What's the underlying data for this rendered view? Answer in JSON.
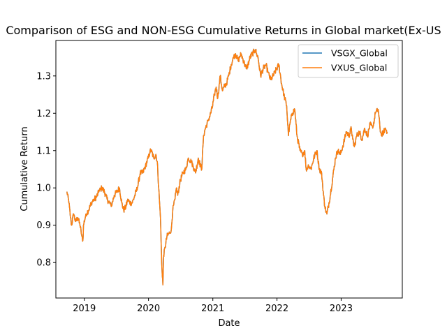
{
  "chart_data": {
    "type": "line",
    "title": "Comparison of ESG and NON-ESG Cumulative Returns in Global market(Ex-US",
    "xlabel": "Date",
    "ylabel": "Cumulative Return",
    "xlim": [
      "2018-07-23",
      "2023-12-15"
    ],
    "ylim": [
      0.705,
      1.395
    ],
    "x_ticks": [
      "2019",
      "2020",
      "2021",
      "2022",
      "2023"
    ],
    "y_ticks": [
      "0.8",
      "0.9",
      "1.0",
      "1.1",
      "1.2",
      "1.3"
    ],
    "grid": false,
    "legend_position": "top-right",
    "x": [
      "2018-09-24",
      "2018-10-05",
      "2018-10-12",
      "2018-10-20",
      "2018-11-01",
      "2018-11-12",
      "2018-11-25",
      "2018-12-07",
      "2018-12-18",
      "2018-12-24",
      "2018-12-27",
      "2019-01-10",
      "2019-01-25",
      "2019-02-10",
      "2019-02-25",
      "2019-03-10",
      "2019-03-25",
      "2019-04-10",
      "2019-04-25",
      "2019-05-10",
      "2019-05-25",
      "2019-06-03",
      "2019-06-20",
      "2019-07-05",
      "2019-07-20",
      "2019-08-02",
      "2019-08-13",
      "2019-08-26",
      "2019-09-05",
      "2019-09-16",
      "2019-10-01",
      "2019-10-15",
      "2019-10-30",
      "2019-11-15",
      "2019-11-30",
      "2019-12-15",
      "2019-12-31",
      "2020-01-10",
      "2020-01-17",
      "2020-01-31",
      "2020-02-12",
      "2020-02-20",
      "2020-02-28",
      "2020-03-09",
      "2020-03-16",
      "2020-03-23",
      "2020-03-27",
      "2020-04-05",
      "2020-04-15",
      "2020-04-30",
      "2020-05-10",
      "2020-05-18",
      "2020-05-31",
      "2020-06-08",
      "2020-06-15",
      "2020-06-30",
      "2020-07-15",
      "2020-07-31",
      "2020-08-15",
      "2020-08-31",
      "2020-09-10",
      "2020-09-25",
      "2020-10-10",
      "2020-10-22",
      "2020-10-30",
      "2020-11-09",
      "2020-11-20",
      "2020-12-05",
      "2020-12-20",
      "2020-12-31",
      "2021-01-10",
      "2021-01-20",
      "2021-01-29",
      "2021-02-12",
      "2021-02-25",
      "2021-03-05",
      "2021-03-20",
      "2021-04-01",
      "2021-04-15",
      "2021-04-30",
      "2021-05-10",
      "2021-05-25",
      "2021-06-10",
      "2021-06-25",
      "2021-07-10",
      "2021-07-20",
      "2021-08-01",
      "2021-08-15",
      "2021-08-31",
      "2021-09-07",
      "2021-09-15",
      "2021-09-30",
      "2021-10-15",
      "2021-10-31",
      "2021-11-10",
      "2021-11-26",
      "2021-12-10",
      "2021-12-31",
      "2022-01-12",
      "2022-01-27",
      "2022-02-09",
      "2022-02-25",
      "2022-03-07",
      "2022-03-15",
      "2022-03-29",
      "2022-04-12",
      "2022-04-25",
      "2022-05-12",
      "2022-05-25",
      "2022-06-08",
      "2022-06-16",
      "2022-06-30",
      "2022-07-14",
      "2022-07-29",
      "2022-08-16",
      "2022-08-30",
      "2022-09-12",
      "2022-09-23",
      "2022-09-30",
      "2022-10-12",
      "2022-10-20",
      "2022-10-31",
      "2022-11-15",
      "2022-11-30",
      "2022-12-13",
      "2022-12-28",
      "2023-01-15",
      "2023-01-31",
      "2023-02-15",
      "2023-02-28",
      "2023-03-08",
      "2023-03-17",
      "2023-03-31",
      "2023-04-15",
      "2023-04-30",
      "2023-05-15",
      "2023-05-31",
      "2023-06-15",
      "2023-06-30",
      "2023-07-15",
      "2023-07-31",
      "2023-08-10",
      "2023-08-18",
      "2023-08-31",
      "2023-09-10",
      "2023-09-20"
    ],
    "series": [
      {
        "name": "VSGX_Global",
        "color": "#1f77b4",
        "values": [
          0.99,
          0.96,
          0.93,
          0.9,
          0.93,
          0.91,
          0.92,
          0.9,
          0.87,
          0.86,
          0.9,
          0.93,
          0.94,
          0.96,
          0.97,
          0.975,
          0.99,
          1.0,
          0.99,
          0.97,
          0.96,
          0.95,
          0.98,
          0.99,
          1.0,
          0.96,
          0.94,
          0.95,
          0.97,
          0.96,
          0.96,
          0.98,
          1.0,
          1.04,
          1.04,
          1.06,
          1.08,
          1.1,
          1.1,
          1.08,
          1.09,
          1.07,
          1.0,
          0.92,
          0.8,
          0.74,
          0.82,
          0.84,
          0.87,
          0.88,
          0.89,
          0.94,
          0.97,
          1.0,
          0.98,
          1.02,
          1.04,
          1.05,
          1.08,
          1.07,
          1.06,
          1.04,
          1.08,
          1.06,
          1.05,
          1.14,
          1.16,
          1.18,
          1.2,
          1.22,
          1.25,
          1.27,
          1.24,
          1.3,
          1.26,
          1.27,
          1.28,
          1.3,
          1.33,
          1.35,
          1.36,
          1.34,
          1.36,
          1.34,
          1.32,
          1.33,
          1.35,
          1.36,
          1.37,
          1.36,
          1.35,
          1.3,
          1.32,
          1.33,
          1.31,
          1.29,
          1.3,
          1.32,
          1.33,
          1.28,
          1.25,
          1.22,
          1.14,
          1.17,
          1.2,
          1.21,
          1.14,
          1.1,
          1.09,
          1.1,
          1.05,
          1.06,
          1.05,
          1.08,
          1.1,
          1.05,
          1.04,
          0.98,
          0.95,
          0.93,
          0.95,
          0.98,
          1.03,
          1.08,
          1.1,
          1.09,
          1.12,
          1.15,
          1.14,
          1.16,
          1.13,
          1.11,
          1.14,
          1.15,
          1.13,
          1.16,
          1.14,
          1.17,
          1.16,
          1.2,
          1.21,
          1.16,
          1.14,
          1.15,
          1.16,
          1.15
        ]
      },
      {
        "name": "VXUS_Global",
        "color": "#ff7f0e",
        "values": [
          0.99,
          0.96,
          0.93,
          0.9,
          0.93,
          0.91,
          0.92,
          0.9,
          0.87,
          0.86,
          0.9,
          0.93,
          0.94,
          0.96,
          0.97,
          0.975,
          0.99,
          1.0,
          0.99,
          0.97,
          0.96,
          0.95,
          0.98,
          0.99,
          1.0,
          0.96,
          0.94,
          0.95,
          0.97,
          0.96,
          0.96,
          0.98,
          1.0,
          1.04,
          1.04,
          1.06,
          1.08,
          1.1,
          1.1,
          1.08,
          1.09,
          1.07,
          1.0,
          0.92,
          0.8,
          0.74,
          0.82,
          0.84,
          0.87,
          0.88,
          0.89,
          0.94,
          0.97,
          1.0,
          0.98,
          1.02,
          1.04,
          1.05,
          1.08,
          1.07,
          1.06,
          1.04,
          1.08,
          1.06,
          1.05,
          1.14,
          1.16,
          1.18,
          1.2,
          1.22,
          1.25,
          1.27,
          1.24,
          1.3,
          1.26,
          1.27,
          1.28,
          1.3,
          1.33,
          1.35,
          1.36,
          1.34,
          1.36,
          1.34,
          1.32,
          1.33,
          1.35,
          1.36,
          1.37,
          1.36,
          1.35,
          1.3,
          1.32,
          1.33,
          1.31,
          1.29,
          1.3,
          1.32,
          1.33,
          1.28,
          1.25,
          1.22,
          1.14,
          1.17,
          1.2,
          1.21,
          1.14,
          1.1,
          1.09,
          1.1,
          1.05,
          1.06,
          1.05,
          1.08,
          1.1,
          1.05,
          1.04,
          0.98,
          0.95,
          0.93,
          0.95,
          0.98,
          1.03,
          1.08,
          1.1,
          1.09,
          1.12,
          1.15,
          1.14,
          1.16,
          1.13,
          1.11,
          1.14,
          1.15,
          1.13,
          1.16,
          1.14,
          1.17,
          1.16,
          1.2,
          1.21,
          1.16,
          1.14,
          1.15,
          1.16,
          1.15
        ]
      }
    ]
  }
}
